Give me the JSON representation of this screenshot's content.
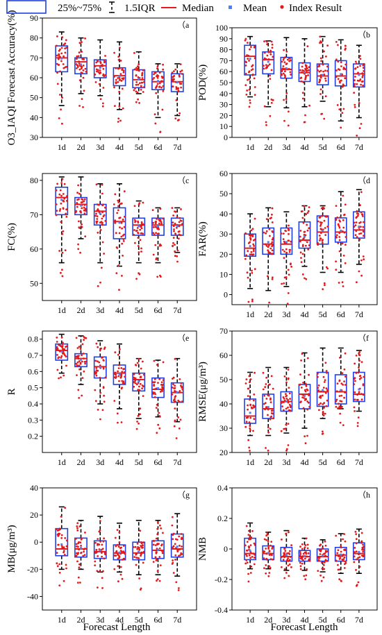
{
  "legend": {
    "box_label": "25%~75%",
    "iqr_label": "1.5IQR",
    "median_label": "Median",
    "mean_label": "Mean",
    "points_label": "Index Result",
    "colors": {
      "box": "#1f3fe0",
      "median": "#e3191c",
      "mean": "#4f7ff0",
      "points": "#e3191c",
      "whisker": "#000000"
    }
  },
  "shared_xlabel": "Forecast Length",
  "chart_data": [
    {
      "panel": "a",
      "type": "box",
      "ylabel": "O3_IAQI Forecast Accuracy(%)",
      "categories": [
        "1d",
        "2d",
        "3d",
        "4d",
        "5d",
        "6d",
        "7d"
      ],
      "ylim": [
        30,
        90
      ],
      "yticks": [
        30,
        40,
        50,
        60,
        70,
        80,
        90
      ],
      "boxes": [
        {
          "q1": 63,
          "median": 70,
          "q3": 76,
          "whisker_low": 46,
          "whisker_high": 83
        },
        {
          "q1": 62,
          "median": 68,
          "q3": 70,
          "whisker_low": 52,
          "whisker_high": 80
        },
        {
          "q1": 60,
          "median": 66,
          "q3": 69,
          "whisker_low": 51,
          "whisker_high": 79
        },
        {
          "q1": 56,
          "median": 61,
          "q3": 65,
          "whisker_low": 44,
          "whisker_high": 78
        },
        {
          "q1": 55,
          "median": 59,
          "q3": 64,
          "whisker_low": 52,
          "whisker_high": 73
        },
        {
          "q1": 54,
          "median": 58,
          "q3": 63,
          "whisker_low": 40,
          "whisker_high": 67
        },
        {
          "q1": 53,
          "median": 58,
          "q3": 62,
          "whisker_low": 41,
          "whisker_high": 67
        }
      ]
    },
    {
      "panel": "b",
      "type": "box",
      "ylabel": "POD(%)",
      "categories": [
        "1d",
        "2d",
        "3d",
        "4d",
        "5d",
        "6d",
        "7d"
      ],
      "ylim": [
        0,
        100
      ],
      "yticks": [
        0,
        10,
        20,
        30,
        40,
        50,
        60,
        70,
        80,
        90,
        100
      ],
      "boxes": [
        {
          "q1": 57,
          "median": 74,
          "q3": 84,
          "whisker_low": 37,
          "whisker_high": 92
        },
        {
          "q1": 58,
          "median": 71,
          "q3": 78,
          "whisker_low": 28,
          "whisker_high": 88
        },
        {
          "q1": 54,
          "median": 62,
          "q3": 73,
          "whisker_low": 27,
          "whisker_high": 91
        },
        {
          "q1": 51,
          "median": 59,
          "q3": 68,
          "whisker_low": 28,
          "whisker_high": 90
        },
        {
          "q1": 48,
          "median": 56,
          "q3": 67,
          "whisker_low": 33,
          "whisker_high": 92
        },
        {
          "q1": 47,
          "median": 56,
          "q3": 70,
          "whisker_low": 15,
          "whisker_high": 89
        },
        {
          "q1": 46,
          "median": 58,
          "q3": 67,
          "whisker_low": 18,
          "whisker_high": 84
        }
      ]
    },
    {
      "panel": "c",
      "type": "box",
      "ylabel": "FC(%)",
      "categories": [
        "1d",
        "2d",
        "3d",
        "4d",
        "5d",
        "6d",
        "7d"
      ],
      "ylim": [
        45,
        82
      ],
      "yticks": [
        50,
        60,
        70,
        80
      ],
      "boxes": [
        {
          "q1": 70,
          "median": 75,
          "q3": 78,
          "whisker_low": 56,
          "whisker_high": 81
        },
        {
          "q1": 70,
          "median": 73,
          "q3": 75,
          "whisker_low": 63,
          "whisker_high": 81
        },
        {
          "q1": 67,
          "median": 71,
          "q3": 73,
          "whisker_low": 56,
          "whisker_high": 79
        },
        {
          "q1": 63,
          "median": 68,
          "q3": 72,
          "whisker_low": 55,
          "whisker_high": 79
        },
        {
          "q1": 64,
          "median": 67,
          "q3": 69,
          "whisker_low": 56,
          "whisker_high": 74
        },
        {
          "q1": 64,
          "median": 67,
          "q3": 69,
          "whisker_low": 56,
          "whisker_high": 72
        },
        {
          "q1": 64,
          "median": 67,
          "q3": 69,
          "whisker_low": 59,
          "whisker_high": 72
        }
      ]
    },
    {
      "panel": "d",
      "type": "box",
      "ylabel": "FAR(%)",
      "categories": [
        "1d",
        "2d",
        "3d",
        "4d",
        "5d",
        "6d",
        "7d"
      ],
      "ylim": [
        -5,
        60
      ],
      "yticks": [
        0,
        10,
        20,
        30,
        40,
        50,
        60
      ],
      "boxes": [
        {
          "q1": 19,
          "median": 23,
          "q3": 30,
          "whisker_low": 3,
          "whisker_high": 40
        },
        {
          "q1": 20,
          "median": 25,
          "q3": 33,
          "whisker_low": 2,
          "whisker_high": 43
        },
        {
          "q1": 20,
          "median": 25,
          "q3": 33,
          "whisker_low": 4,
          "whisker_high": 41
        },
        {
          "q1": 23,
          "median": 27,
          "q3": 36,
          "whisker_low": 14,
          "whisker_high": 44
        },
        {
          "q1": 25,
          "median": 31,
          "q3": 39,
          "whisker_low": 11,
          "whisker_high": 44
        },
        {
          "q1": 26,
          "median": 31,
          "q3": 38,
          "whisker_low": 11,
          "whisker_high": 51
        },
        {
          "q1": 28,
          "median": 32,
          "q3": 41,
          "whisker_low": 15,
          "whisker_high": 52
        }
      ]
    },
    {
      "panel": "e",
      "type": "box",
      "ylabel": "R",
      "categories": [
        "1d",
        "2d",
        "3d",
        "4d",
        "5d",
        "6d",
        "7d"
      ],
      "ylim": [
        0.1,
        0.85
      ],
      "yticks": [
        0.2,
        0.3,
        0.4,
        0.5,
        0.6,
        0.7,
        0.8
      ],
      "boxes": [
        {
          "q1": 0.67,
          "median": 0.73,
          "q3": 0.77,
          "whisker_low": 0.59,
          "whisker_high": 0.83
        },
        {
          "q1": 0.63,
          "median": 0.68,
          "q3": 0.71,
          "whisker_low": 0.52,
          "whisker_high": 0.82
        },
        {
          "q1": 0.56,
          "median": 0.63,
          "q3": 0.69,
          "whisker_low": 0.4,
          "whisker_high": 0.79
        },
        {
          "q1": 0.52,
          "median": 0.59,
          "q3": 0.64,
          "whisker_low": 0.37,
          "whisker_high": 0.77
        },
        {
          "q1": 0.48,
          "median": 0.55,
          "q3": 0.59,
          "whisker_low": 0.31,
          "whisker_high": 0.68
        },
        {
          "q1": 0.44,
          "median": 0.49,
          "q3": 0.56,
          "whisker_low": 0.32,
          "whisker_high": 0.67
        },
        {
          "q1": 0.41,
          "median": 0.47,
          "q3": 0.53,
          "whisker_low": 0.29,
          "whisker_high": 0.68
        }
      ]
    },
    {
      "panel": "f",
      "type": "box",
      "ylabel": "RMSE(μg/m³)",
      "categories": [
        "1d",
        "2d",
        "3d",
        "4d",
        "5d",
        "6d",
        "7d"
      ],
      "ylim": [
        20,
        70
      ],
      "yticks": [
        20,
        30,
        40,
        50,
        60,
        70
      ],
      "boxes": [
        {
          "q1": 32,
          "median": 35,
          "q3": 42,
          "whisker_low": 27,
          "whisker_high": 53
        },
        {
          "q1": 34,
          "median": 38,
          "q3": 44,
          "whisker_low": 27,
          "whisker_high": 55
        },
        {
          "q1": 37,
          "median": 41,
          "q3": 45,
          "whisker_low": 28,
          "whisker_high": 55
        },
        {
          "q1": 38,
          "median": 44,
          "q3": 48,
          "whisker_low": 30,
          "whisker_high": 61
        },
        {
          "q1": 39,
          "median": 45,
          "q3": 53,
          "whisker_low": 34,
          "whisker_high": 63
        },
        {
          "q1": 40,
          "median": 45,
          "q3": 52,
          "whisker_low": 38,
          "whisker_high": 63
        },
        {
          "q1": 41,
          "median": 44,
          "q3": 53,
          "whisker_low": 37,
          "whisker_high": 62
        }
      ]
    },
    {
      "panel": "g",
      "type": "box",
      "ylabel": "MB(μg/m³)",
      "categories": [
        "1d",
        "2d",
        "3d",
        "4d",
        "5d",
        "6d",
        "7d"
      ],
      "ylim": [
        -50,
        40
      ],
      "yticks": [
        -40,
        -20,
        0,
        20,
        40
      ],
      "boxes": [
        {
          "q1": -10,
          "median": -5,
          "q3": 10,
          "whisker_low": -20,
          "whisker_high": 26
        },
        {
          "q1": -11,
          "median": -5,
          "q3": 3,
          "whisker_low": -20,
          "whisker_high": 16
        },
        {
          "q1": -12,
          "median": -7,
          "q3": 1,
          "whisker_low": -22,
          "whisker_high": 19
        },
        {
          "q1": -13,
          "median": -8,
          "q3": -2,
          "whisker_low": -22,
          "whisker_high": 14
        },
        {
          "q1": -13,
          "median": -8,
          "q3": 0,
          "whisker_low": -24,
          "whisker_high": 16
        },
        {
          "q1": -12,
          "median": -6,
          "q3": 1,
          "whisker_low": -24,
          "whisker_high": 16
        },
        {
          "q1": -11,
          "median": -5,
          "q3": 6,
          "whisker_low": -25,
          "whisker_high": 21
        }
      ]
    },
    {
      "panel": "h",
      "type": "box",
      "ylabel": "NMB",
      "categories": [
        "1d",
        "2d",
        "3d",
        "4d",
        "5d",
        "6d",
        "7d"
      ],
      "ylim": [
        -0.4,
        0.4
      ],
      "yticks": [
        -0.4,
        -0.2,
        0.0,
        0.2,
        0.4
      ],
      "boxes": [
        {
          "q1": -0.07,
          "median": -0.03,
          "q3": 0.07,
          "whisker_low": -0.13,
          "whisker_high": 0.17
        },
        {
          "q1": -0.07,
          "median": -0.03,
          "q3": 0.02,
          "whisker_low": -0.13,
          "whisker_high": 0.11
        },
        {
          "q1": -0.08,
          "median": -0.05,
          "q3": 0.01,
          "whisker_low": -0.14,
          "whisker_high": 0.12
        },
        {
          "q1": -0.08,
          "median": -0.05,
          "q3": -0.01,
          "whisker_low": -0.14,
          "whisker_high": 0.07
        },
        {
          "q1": -0.08,
          "median": -0.05,
          "q3": 0.0,
          "whisker_low": -0.15,
          "whisker_high": 0.06
        },
        {
          "q1": -0.08,
          "median": -0.04,
          "q3": 0.01,
          "whisker_low": -0.16,
          "whisker_high": 0.1
        },
        {
          "q1": -0.07,
          "median": -0.03,
          "q3": 0.04,
          "whisker_low": -0.16,
          "whisker_high": 0.13
        }
      ]
    }
  ]
}
